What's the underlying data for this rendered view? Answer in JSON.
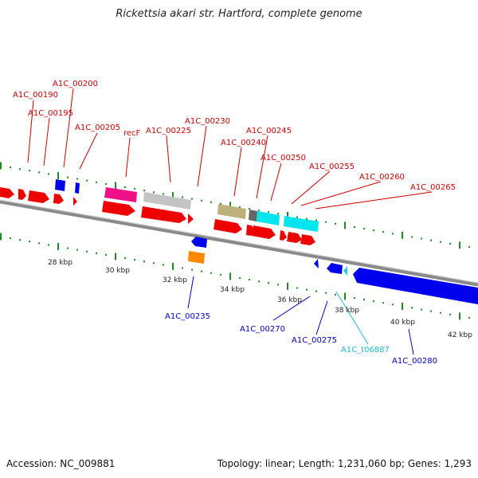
{
  "title": "Rickettsia akari str. Hartford, complete genome",
  "footer": {
    "accession": "Accession: NC_009881",
    "summary": "Topology: linear; Length: 1,231,060 bp; Genes: 1,293"
  },
  "colors": {
    "backbone": "#8a8a8a",
    "tick": "#1f8a1f",
    "label_top": "#cc0000",
    "label_bottom": "#0000cc",
    "label_trna": "#22bbcc"
  },
  "axis_labels": [
    "28 kbp",
    "30 kbp",
    "32 kbp",
    "34 kbp",
    "36 kbp",
    "38 kbp",
    "40 kbp",
    "42 kbp"
  ],
  "genes_forward": [
    "A1C_00190",
    "A1C_00195",
    "A1C_00200",
    "A1C_00205",
    "recF",
    "A1C_00225",
    "A1C_00230",
    "A1C_00240",
    "A1C_00245",
    "A1C_00250",
    "A1C_00255",
    "A1C_00260",
    "A1C_00265"
  ],
  "genes_reverse": [
    "A1C_00235",
    "A1C_00270",
    "A1C_00275",
    "A1C_t06887",
    "A1C_00280"
  ]
}
